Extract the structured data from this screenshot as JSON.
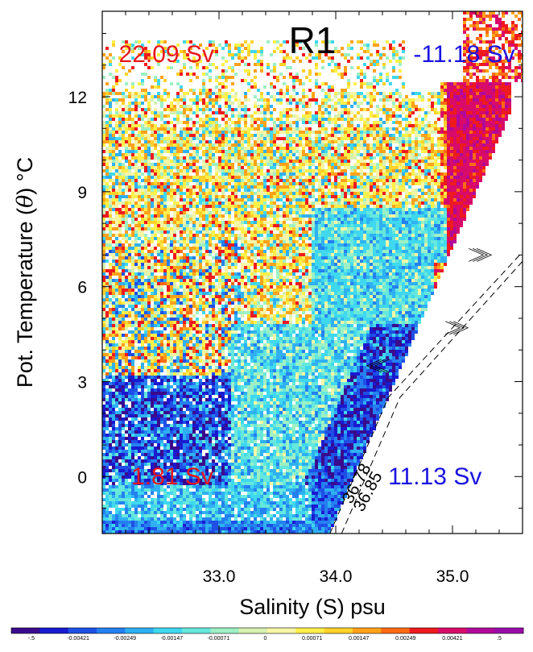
{
  "chart_data": {
    "type": "heatmap",
    "title": "R1",
    "xlabel": "Salinity (S) psu",
    "ylabel_prefix": "Pot. Temperature (",
    "ylabel_symbol": "θ",
    "ylabel_suffix": ") °C",
    "xlim": [
      32.0,
      35.6
    ],
    "ylim": [
      -1.8,
      14.7
    ],
    "xticks": [
      33.0,
      34.0,
      35.0
    ],
    "xtick_labels": [
      "33.0",
      "34.0",
      "35.0"
    ],
    "yticks": [
      12,
      9,
      6,
      3,
      0
    ],
    "ytick_labels": [
      "12",
      "9",
      "6",
      "3",
      "0"
    ],
    "annotations": [
      {
        "text": "22.09 Sv",
        "color": "#e8151b",
        "s": 32.55,
        "t": 13.1
      },
      {
        "text": "-11.18 Sv",
        "color": "#1a12e0",
        "s": 35.1,
        "t": 13.1
      },
      {
        "text": "1.81 Sv",
        "color": "#e8151b",
        "s": 32.6,
        "t": -0.25
      },
      {
        "text": "11.13 Sv",
        "color": "#1a12e0",
        "s": 34.85,
        "t": -0.25
      }
    ],
    "density_contours": [
      {
        "label": "36.78",
        "points": [
          [
            33.95,
            -1.8
          ],
          [
            34.45,
            2.5
          ],
          [
            35.6,
            7.1
          ]
        ]
      },
      {
        "label": "36.85",
        "points": [
          [
            34.05,
            -1.8
          ],
          [
            34.55,
            2.5
          ],
          [
            35.6,
            6.8
          ]
        ]
      }
    ],
    "arrows": [
      {
        "direction": "right",
        "s": 35.25,
        "t": 7.0
      },
      {
        "direction": "left",
        "s": 34.35,
        "t": 3.5
      },
      {
        "direction": "right",
        "s": 35.05,
        "t": 4.7
      }
    ],
    "colorbar": {
      "labels": [
        "-.5",
        "-0.00421",
        "-0.00249",
        "-0.00147",
        "-0.00071",
        "0",
        "0.00071",
        "0.00147",
        "0.00249",
        "0.00421",
        ".5"
      ],
      "colors": [
        "#3a0a8c",
        "#1a1ad0",
        "#1f4fe6",
        "#2580f0",
        "#2fb0f2",
        "#3fd8ee",
        "#66e8dc",
        "#9df0c4",
        "#d8f0b0",
        "#f6f6a6",
        "#fff04a",
        "#ffd22a",
        "#ffa21a",
        "#ff6a14",
        "#ee1a1e",
        "#d80a6a",
        "#b0089a",
        "#9a0aa8"
      ]
    }
  }
}
